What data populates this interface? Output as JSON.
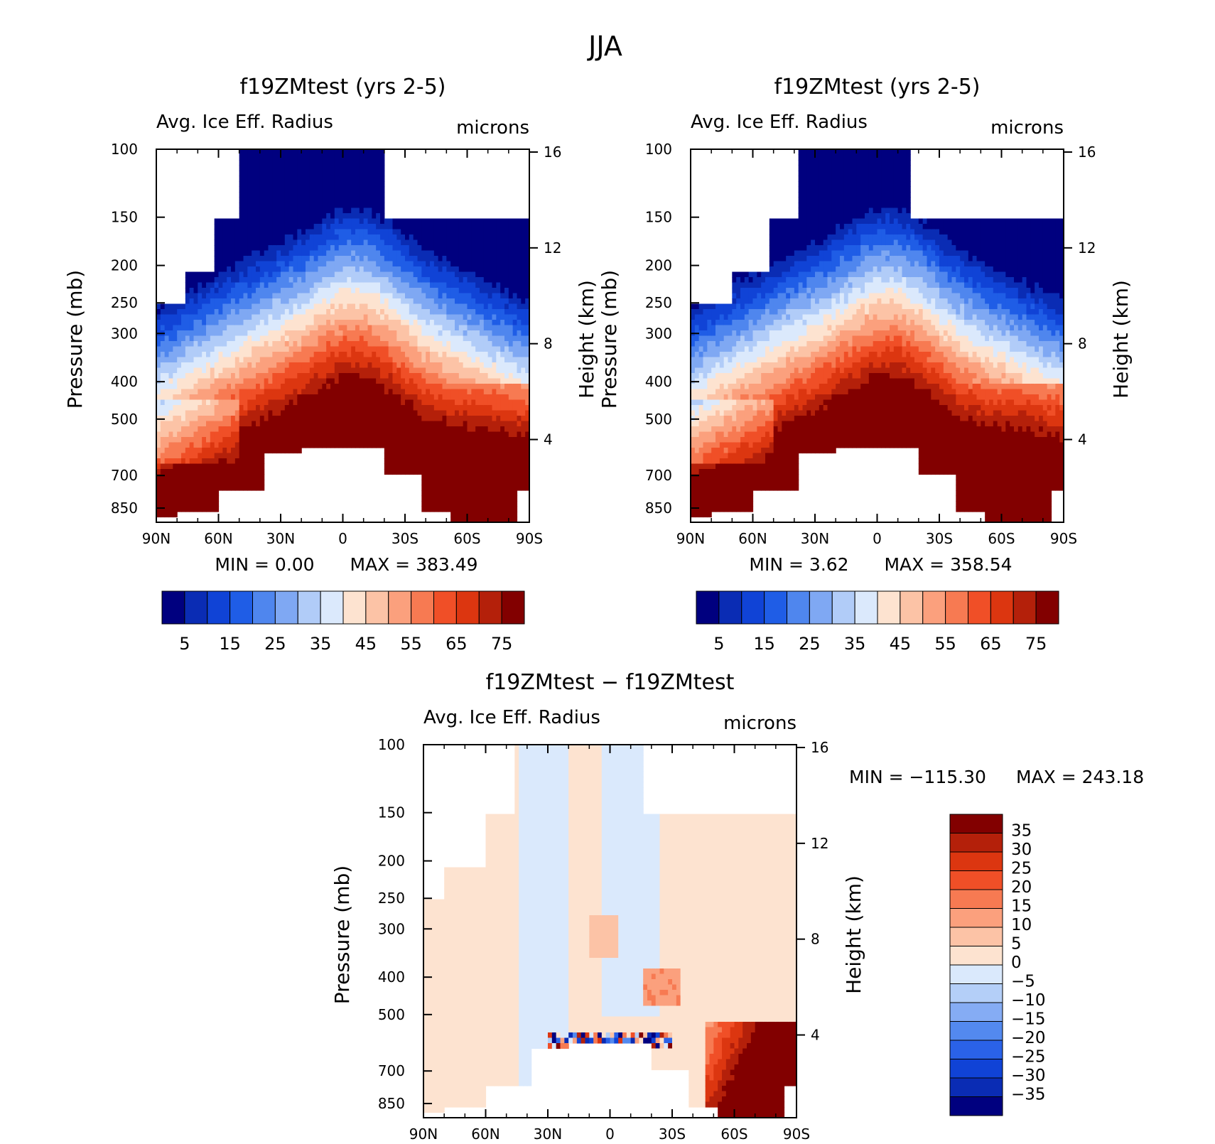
{
  "figure_title": "JJA",
  "palettes": {
    "abs": [
      "#00007f",
      "#0a2cb4",
      "#1043d6",
      "#1f5de6",
      "#4f86ee",
      "#7fa8f3",
      "#b1ccf8",
      "#dbe9fc",
      "#fde3d0",
      "#fcc3a6",
      "#fba07d",
      "#f77a52",
      "#f04f27",
      "#dc3610",
      "#b4200a",
      "#820000"
    ],
    "diff": [
      "#00007f",
      "#0a2cb4",
      "#1043d6",
      "#2a62e8",
      "#5389ef",
      "#85acf4",
      "#b4cff8",
      "#dae9fc",
      "#fde3d0",
      "#fcc3a6",
      "#fba07d",
      "#f77a52",
      "#f04f27",
      "#dc3610",
      "#b4200a",
      "#820000"
    ]
  },
  "chart_data": [
    {
      "id": "panel_a",
      "type": "heatmap",
      "title": "f19ZMtest (yrs 2-5)",
      "left_label": "Avg. Ice Eff. Radius",
      "right_label": "microns",
      "ylabel": "Pressure (mb)",
      "ylabel_right": "Height (km)",
      "x_ticks": [
        "90N",
        "60N",
        "30N",
        "0",
        "30S",
        "60S",
        "90S"
      ],
      "xlim": [
        90,
        -90
      ],
      "y_ticks": [
        100,
        150,
        200,
        250,
        300,
        400,
        500,
        700,
        850
      ],
      "ylim_mb": [
        100,
        925
      ],
      "height_ticks_km": [
        16,
        12,
        8,
        4
      ],
      "min_label": "MIN =",
      "min_value": "0.00",
      "max_label": "MAX =",
      "max_value": "383.49",
      "colorbar_labels": [
        "5",
        "15",
        "25",
        "35",
        "45",
        "55",
        "65",
        "75"
      ],
      "levels": [
        0,
        5,
        10,
        15,
        20,
        25,
        30,
        35,
        40,
        45,
        50,
        55,
        60,
        65,
        70,
        75,
        80
      ],
      "field": "abs"
    },
    {
      "id": "panel_b",
      "type": "heatmap",
      "title": "f19ZMtest (yrs 2-5)",
      "left_label": "Avg. Ice Eff. Radius",
      "right_label": "microns",
      "ylabel": "Pressure (mb)",
      "ylabel_right": "Height (km)",
      "x_ticks": [
        "90N",
        "60N",
        "30N",
        "0",
        "30S",
        "60S",
        "90S"
      ],
      "xlim": [
        90,
        -90
      ],
      "y_ticks": [
        100,
        150,
        200,
        250,
        300,
        400,
        500,
        700,
        850
      ],
      "ylim_mb": [
        100,
        925
      ],
      "height_ticks_km": [
        16,
        12,
        8,
        4
      ],
      "min_label": "MIN =",
      "min_value": "3.62",
      "max_label": "MAX =",
      "max_value": "358.54",
      "colorbar_labels": [
        "5",
        "15",
        "25",
        "35",
        "45",
        "55",
        "65",
        "75"
      ],
      "levels": [
        0,
        5,
        10,
        15,
        20,
        25,
        30,
        35,
        40,
        45,
        50,
        55,
        60,
        65,
        70,
        75,
        80
      ],
      "field": "abs"
    },
    {
      "id": "panel_c",
      "type": "heatmap",
      "title": "f19ZMtest − f19ZMtest",
      "left_label": "Avg. Ice Eff. Radius",
      "right_label": "microns",
      "ylabel": "Pressure (mb)",
      "ylabel_right": "Height (km)",
      "x_ticks": [
        "90N",
        "60N",
        "30N",
        "0",
        "30S",
        "60S",
        "90S"
      ],
      "xlim": [
        90,
        -90
      ],
      "y_ticks": [
        100,
        150,
        200,
        250,
        300,
        400,
        500,
        700,
        850
      ],
      "ylim_mb": [
        100,
        925
      ],
      "height_ticks_km": [
        16,
        12,
        8,
        4
      ],
      "min_label": "MIN =",
      "min_value": "−115.30",
      "max_label": "MAX =",
      "max_value": "243.18",
      "colorbar_labels": [
        "35",
        "30",
        "25",
        "20",
        "15",
        "10",
        "5",
        "0",
        "−5",
        "−10",
        "−15",
        "−20",
        "−25",
        "−30",
        "−35"
      ],
      "levels": [
        -40,
        -35,
        -30,
        -25,
        -20,
        -15,
        -10,
        -5,
        0,
        5,
        10,
        15,
        20,
        25,
        30,
        35,
        40
      ],
      "field": "diff"
    }
  ]
}
